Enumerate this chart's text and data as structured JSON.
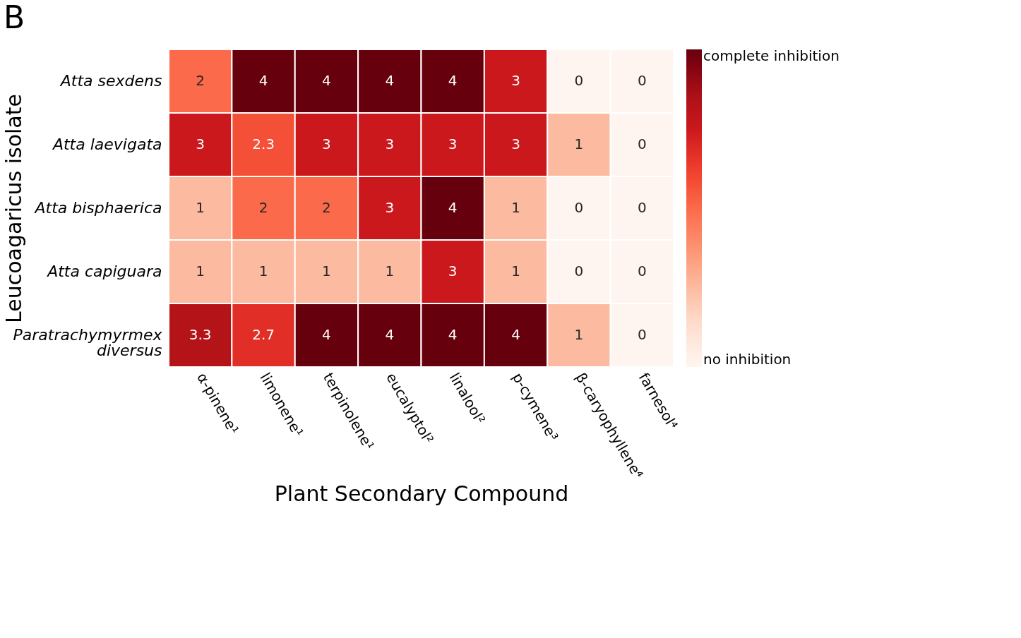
{
  "chart_data": {
    "type": "heatmap",
    "title": "B",
    "xlabel": "Plant Secondary Compound",
    "ylabel": "Leucoagaricus isolate",
    "categories": [
      "α-pinene¹",
      "limonene¹",
      "terpinolene¹",
      "eucalyptol²",
      "linalool²",
      "p-cymene³",
      "β-caryophyllene⁴",
      "farnesol⁴"
    ],
    "y_categories": [
      "Atta sexdens",
      "Atta laevigata",
      "Atta bisphaerica",
      "Atta capiguara",
      "Paratrachymyrmex diversus"
    ],
    "cells": [
      [
        2,
        4,
        4,
        4,
        4,
        3,
        0,
        0
      ],
      [
        3,
        2.3,
        3,
        3,
        3,
        3,
        1,
        0
      ],
      [
        1,
        2,
        2,
        3,
        4,
        1,
        0,
        0
      ],
      [
        1,
        1,
        1,
        1,
        3,
        1,
        0,
        0
      ],
      [
        3.3,
        2.7,
        4,
        4,
        4,
        4,
        1,
        0
      ]
    ],
    "clim": [
      0,
      4
    ],
    "cticks": [
      {
        "value": 0,
        "label": "no inhibition"
      },
      {
        "value": 4,
        "label": "complete inhibition"
      }
    ],
    "data_labels": true,
    "grid": false
  }
}
